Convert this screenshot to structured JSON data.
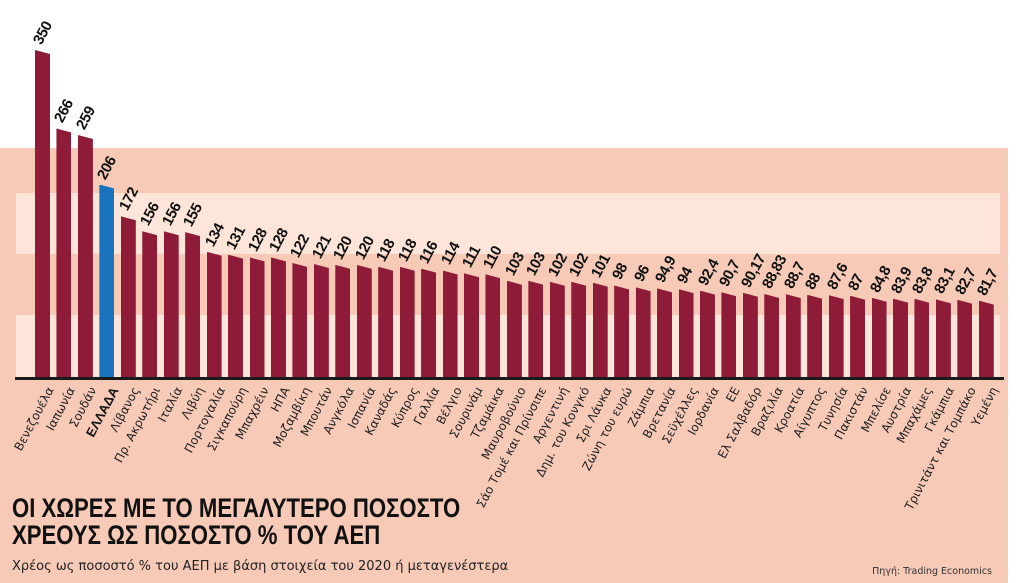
{
  "title_line1": "ΟΙ ΧΩΡΕΣ ΜΕ ΤΟ ΜΕΓΑΛΥΤΕΡΟ ΠΟΣΟΣΤΟ",
  "title_line2": "ΧΡΕΟΥΣ ΩΣ ΠΟΣΟΣΤΟ % ΤΟΥ ΑΕΠ",
  "subtitle": "Χρέος ως ποσοστό % του ΑΕΠ με βάση στοιχεία του 2020 ή μεταγενέστερα",
  "source": "Πηγή: Trading Economics",
  "colors": {
    "bar": "#8e1b37",
    "highlight": "#1a73bd",
    "background": "#f7c9b7",
    "band": "#fde6d9"
  },
  "chart_data": {
    "type": "bar",
    "title": "ΟΙ ΧΩΡΕΣ ΜΕ ΤΟ ΜΕΓΑΛΥΤΕΡΟ ΠΟΣΟΣΤΟ ΧΡΕΟΥΣ ΩΣ ΠΟΣΟΣΤΟ % ΤΟΥ ΑΕΠ",
    "subtitle": "Χρέος ως ποσοστό % του ΑΕΠ με βάση στοιχεία του 2020 ή μεταγενέστερα",
    "xlabel": "",
    "ylabel": "",
    "ylim": [
      0,
      350
    ],
    "grid": false,
    "legend": null,
    "highlight": "ΕΛΛΑΔΑ",
    "categories": [
      "Βενεζουέλα",
      "Ιαπωνία",
      "Σουδάν",
      "ΕΛΛΑΔΑ",
      "Λίβανος",
      "Πρ. Ακρωτήρι",
      "Ιταλία",
      "Λιβύη",
      "Πορτογαλία",
      "Σιγκαπούρη",
      "Μπαχρέιν",
      "ΗΠΑ",
      "Μοζαμβίκη",
      "Μπουτάν",
      "Ανγκόλα",
      "Ισπανία",
      "Καναδάς",
      "Κύπρος",
      "Γαλλία",
      "Βέλγιο",
      "Σουρινάμ",
      "Τζαμάικα",
      "Μαυροβούνιο",
      "Σάο Τομέ και Πρίνσιπε",
      "Αργεντινή",
      "Δημ. του Κονγκό",
      "Σρι Λάνκα",
      "Ζώνη του ευρώ",
      "Ζάμπια",
      "Βρετανία",
      "Σεϋχέλλες",
      "Ιορδανία",
      "ΕΕ",
      "Ελ Σαλβαδόρ",
      "Βραζιλία",
      "Κροατία",
      "Αίγυπτος",
      "Τυνησία",
      "Πακιστάν",
      "Μπελίσε",
      "Αυστρία",
      "Μπαχάμες",
      "Γκάμπια",
      "Τρινιτάντ και Τομπάκο",
      "Υεμένη"
    ],
    "value_labels": [
      "350",
      "266",
      "259",
      "206",
      "172",
      "156",
      "156",
      "155",
      "134",
      "131",
      "128",
      "128",
      "122",
      "121",
      "120",
      "120",
      "118",
      "118",
      "116",
      "114",
      "111",
      "110",
      "103",
      "103",
      "102",
      "102",
      "101",
      "98",
      "96",
      "94,9",
      "94",
      "92,4",
      "90,7",
      "90,17",
      "88,83",
      "88,7",
      "88",
      "87,6",
      "87",
      "84,8",
      "83,9",
      "83,8",
      "83,1",
      "82,7",
      "81,7"
    ],
    "values": [
      350,
      266,
      259,
      206,
      172,
      156,
      156,
      155,
      134,
      131,
      128,
      128,
      122,
      121,
      120,
      120,
      118,
      118,
      116,
      114,
      111,
      110,
      103,
      103,
      102,
      102,
      101,
      98,
      96,
      94.9,
      94,
      92.4,
      90.7,
      90.17,
      88.83,
      88.7,
      88,
      87.6,
      87,
      84.8,
      83.9,
      83.8,
      83.1,
      82.7,
      81.7
    ]
  }
}
